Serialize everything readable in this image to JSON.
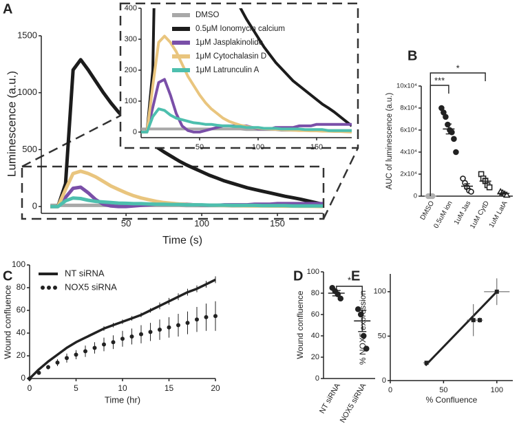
{
  "chart_data": [
    {
      "panel": "A",
      "type": "line",
      "xlabel": "Time (s)",
      "ylabel": "Luminescence (a.u.)",
      "x": [
        0,
        5,
        10,
        15,
        20,
        25,
        30,
        35,
        40,
        45,
        50,
        55,
        60,
        65,
        70,
        75,
        80,
        85,
        90,
        95,
        100,
        105,
        110,
        115,
        120,
        125,
        130,
        135,
        140,
        145,
        150,
        155,
        160,
        165,
        170,
        175,
        180
      ],
      "xlim": [
        -6,
        180
      ],
      "ylim": [
        -60,
        1500
      ],
      "xticks": [
        50,
        100,
        150
      ],
      "yticks": [
        0,
        500,
        1000,
        1500
      ],
      "series": [
        {
          "name": "DMSO",
          "color": "#a8a8a8",
          "values": [
            10,
            10,
            10,
            10,
            10,
            10,
            10,
            10,
            10,
            10,
            10,
            10,
            10,
            10,
            10,
            10,
            10,
            10,
            8,
            8,
            8,
            8,
            8,
            8,
            6,
            6,
            6,
            6,
            6,
            6,
            5,
            5,
            5,
            5,
            5,
            5,
            5
          ]
        },
        {
          "name": "0.5μM Ionomycin calcium",
          "color": "#1c1c1c",
          "values": [
            0,
            0,
            200,
            1200,
            1290,
            1200,
            1100,
            1000,
            910,
            830,
            760,
            690,
            630,
            575,
            525,
            480,
            440,
            400,
            365,
            335,
            305,
            275,
            250,
            225,
            205,
            185,
            165,
            150,
            135,
            120,
            105,
            90,
            78,
            65,
            50,
            35,
            20
          ]
        },
        {
          "name": "1μM Jasplakinolide",
          "color": "#7a4fa8",
          "values": [
            0,
            0,
            80,
            160,
            170,
            120,
            60,
            20,
            5,
            0,
            0,
            5,
            10,
            15,
            20,
            20,
            20,
            20,
            20,
            15,
            10,
            10,
            10,
            15,
            15,
            15,
            15,
            20,
            20,
            20,
            25,
            25,
            25,
            25,
            25,
            25,
            25
          ]
        },
        {
          "name": "1μM Cytochalasin D",
          "color": "#e9c57e",
          "values": [
            0,
            0,
            150,
            290,
            310,
            290,
            260,
            220,
            180,
            150,
            120,
            95,
            75,
            60,
            45,
            35,
            28,
            22,
            18,
            15,
            13,
            11,
            10,
            9,
            8,
            7,
            6,
            5,
            5,
            4,
            4,
            3,
            3,
            2,
            2,
            1,
            0
          ]
        },
        {
          "name": "1μM Latrunculin A",
          "color": "#4dbfae",
          "values": [
            0,
            0,
            50,
            75,
            70,
            55,
            45,
            40,
            35,
            30,
            28,
            25,
            25,
            22,
            20,
            20,
            18,
            18,
            15,
            15,
            15,
            12,
            12,
            12,
            10,
            10,
            10,
            10,
            8,
            8,
            8,
            8,
            5,
            5,
            5,
            5,
            5
          ]
        }
      ],
      "inset": {
        "xlim": [
          0,
          180
        ],
        "ylim": [
          -18,
          400
        ],
        "xticks": [
          50,
          100,
          150
        ],
        "yticks": [
          0,
          100,
          200,
          300,
          400
        ]
      }
    },
    {
      "panel": "B",
      "type": "dot",
      "ylabel": "AUC of luminescence (a.u.)",
      "categories": [
        "DMSO",
        "0.5uM ion",
        "1uM Jas",
        "1uM CytD",
        "1uM LatA"
      ],
      "ylim": [
        0,
        100000
      ],
      "yticks": [
        0,
        {
          "value": 20000,
          "label": "2x10⁴"
        },
        {
          "value": 40000,
          "label": "4x10⁴"
        },
        {
          "value": 60000,
          "label": "6x10⁴"
        },
        {
          "value": 80000,
          "label": "8x10⁴"
        },
        {
          "value": 100000,
          "label": "10x10⁴"
        }
      ],
      "points": [
        [
          0,
          0,
          0
        ],
        [
          80000,
          76000,
          72000,
          65000,
          60000,
          58000,
          52000,
          40000
        ],
        [
          16000,
          12000,
          8000,
          5000,
          4000
        ],
        [
          20000,
          16000,
          14000,
          10000,
          8000
        ],
        [
          4000,
          3000,
          2000,
          1000
        ]
      ],
      "means": [
        0,
        61000,
        9000,
        13600,
        2500
      ],
      "errors": [
        0,
        4500,
        2300,
        2200,
        700
      ],
      "colors": [
        "#b0b0b0",
        "#222222",
        "#222222",
        "#222222",
        "#222222"
      ],
      "markers": [
        "circle",
        "circle",
        "circle",
        "square",
        "triangle"
      ],
      "filled": [
        true,
        true,
        false,
        false,
        false
      ],
      "annotations": [
        "***",
        "*"
      ]
    },
    {
      "panel": "C",
      "type": "line",
      "xlabel": "Time (hr)",
      "ylabel": "Wound confluence",
      "x": [
        0,
        1,
        2,
        3,
        4,
        5,
        6,
        7,
        8,
        9,
        10,
        11,
        12,
        13,
        14,
        15,
        16,
        17,
        18,
        19,
        20
      ],
      "xlim": [
        0,
        20
      ],
      "ylim": [
        0,
        100
      ],
      "xticks": [
        0,
        5,
        10,
        15,
        20
      ],
      "yticks": [
        0,
        20,
        40,
        60,
        80,
        100
      ],
      "series": [
        {
          "name": "NT siRNA",
          "color": "#222222",
          "style": "solid",
          "values": [
            0,
            8,
            15,
            21,
            27,
            32,
            36,
            40,
            44,
            47,
            50,
            53,
            56,
            60,
            64,
            68,
            72,
            76,
            79,
            83,
            87
          ],
          "errors": [
            0,
            1,
            1,
            1,
            1,
            1,
            1,
            1,
            2,
            2,
            2,
            2,
            2,
            2,
            3,
            3,
            3,
            3,
            3,
            3,
            3
          ]
        },
        {
          "name": "NOX5 siRNA",
          "color": "#222222",
          "style": "dots",
          "values": [
            0,
            5,
            10,
            14,
            18,
            21,
            24,
            27,
            30,
            32,
            35,
            37,
            39,
            41,
            43,
            45,
            47,
            49,
            52,
            54,
            55
          ],
          "errors": [
            0,
            1,
            2,
            3,
            4,
            4,
            5,
            5,
            6,
            6,
            7,
            7,
            8,
            8,
            9,
            9,
            10,
            10,
            11,
            12,
            13
          ]
        }
      ]
    },
    {
      "panel": "D",
      "type": "dot",
      "ylabel": "Wound confluence",
      "categories": [
        "NT siRNA",
        "NOX5 siRNA"
      ],
      "ylim": [
        0,
        100
      ],
      "yticks": [
        0,
        20,
        40,
        60,
        80,
        100
      ],
      "points": [
        [
          85,
          82,
          79,
          75
        ],
        [
          65,
          60,
          40,
          28
        ]
      ],
      "means": [
        80,
        54
      ],
      "errors": [
        2.5,
        10
      ],
      "colors": [
        "#222222",
        "#222222"
      ],
      "markers": [
        "circle",
        "circle"
      ],
      "filled": [
        true,
        true
      ],
      "annotations": [
        "*"
      ]
    },
    {
      "panel": "E",
      "type": "scatter",
      "xlabel": "% Confluence",
      "ylabel": "% NOX5 expression",
      "xlim": [
        0,
        115
      ],
      "ylim": [
        0,
        120
      ],
      "xticks": [
        0,
        50,
        100
      ],
      "yticks": [
        0,
        50,
        100
      ],
      "x": [
        34,
        78,
        84,
        100
      ],
      "y": [
        20,
        68,
        68,
        100
      ],
      "xerr": [
        3,
        6,
        3,
        12
      ],
      "yerr": [
        2,
        18,
        3,
        15
      ],
      "fit": {
        "x": [
          33,
          100
        ],
        "y": [
          17,
          100
        ]
      },
      "color": "#222222"
    }
  ]
}
